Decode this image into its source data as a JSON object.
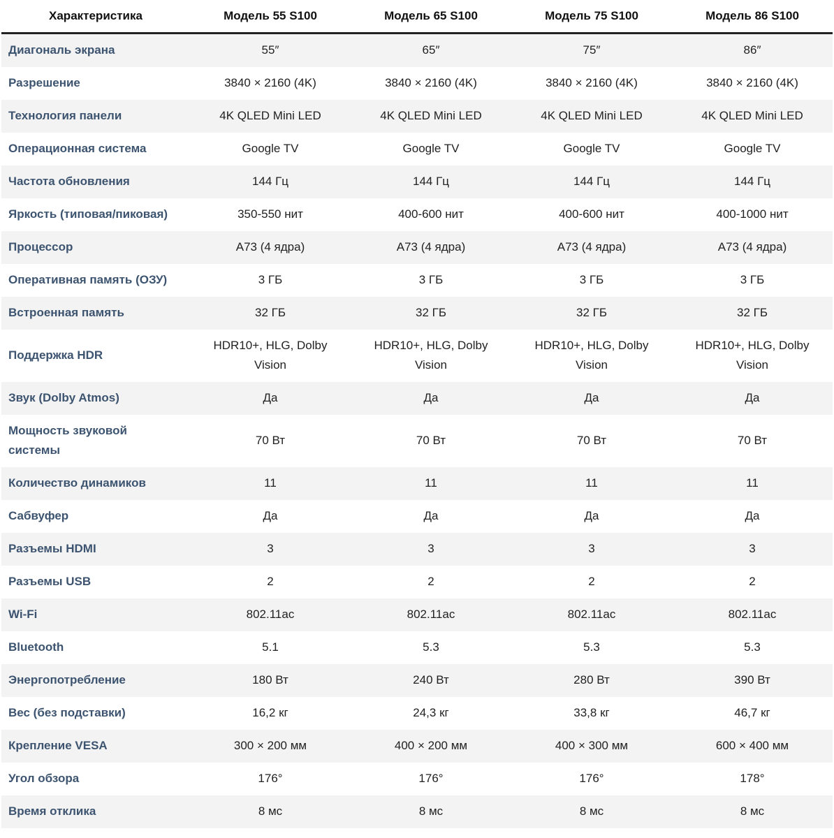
{
  "table": {
    "header": [
      "Характеристика",
      "Модель 55 S100",
      "Модель 65 S100",
      "Модель 75 S100",
      "Модель 86 S100"
    ],
    "rows": [
      [
        "Диагональ экрана",
        "55″",
        "65″",
        "75″",
        "86″"
      ],
      [
        "Разрешение",
        "3840 × 2160 (4K)",
        "3840 × 2160 (4K)",
        "3840 × 2160 (4K)",
        "3840 × 2160 (4K)"
      ],
      [
        "Технология панели",
        "4K QLED Mini LED",
        "4K QLED Mini LED",
        "4K QLED Mini LED",
        "4K QLED Mini LED"
      ],
      [
        "Операционная система",
        "Google TV",
        "Google TV",
        "Google TV",
        "Google TV"
      ],
      [
        "Частота обновления",
        "144 Гц",
        "144 Гц",
        "144 Гц",
        "144 Гц"
      ],
      [
        "Яркость (типовая/пиковая)",
        "350-550 нит",
        "400-600 нит",
        "400-600 нит",
        "400-1000 нит"
      ],
      [
        "Процессор",
        "A73 (4 ядра)",
        "A73 (4 ядра)",
        "A73 (4 ядра)",
        "A73 (4 ядра)"
      ],
      [
        "Оперативная память (ОЗУ)",
        "3 ГБ",
        "3 ГБ",
        "3 ГБ",
        "3 ГБ"
      ],
      [
        "Встроенная память",
        "32 ГБ",
        "32 ГБ",
        "32 ГБ",
        "32 ГБ"
      ],
      [
        "Поддержка HDR",
        "HDR10+, HLG, Dolby Vision",
        "HDR10+, HLG, Dolby Vision",
        "HDR10+, HLG, Dolby Vision",
        "HDR10+, HLG, Dolby Vision"
      ],
      [
        "Звук (Dolby Atmos)",
        "Да",
        "Да",
        "Да",
        "Да"
      ],
      [
        "Мощность звуковой системы",
        "70 Вт",
        "70 Вт",
        "70 Вт",
        "70 Вт"
      ],
      [
        "Количество динамиков",
        "11",
        "11",
        "11",
        "11"
      ],
      [
        "Сабвуфер",
        "Да",
        "Да",
        "Да",
        "Да"
      ],
      [
        "Разъемы HDMI",
        "3",
        "3",
        "3",
        "3"
      ],
      [
        "Разъемы USB",
        "2",
        "2",
        "2",
        "2"
      ],
      [
        "Wi-Fi",
        "802.11ac",
        "802.11ac",
        "802.11ac",
        "802.11ac"
      ],
      [
        "Bluetooth",
        "5.1",
        "5.3",
        "5.3",
        "5.3"
      ],
      [
        "Энергопотребление",
        "180 Вт",
        "240 Вт",
        "280 Вт",
        "390 Вт"
      ],
      [
        "Вес (без подставки)",
        "16,2 кг",
        "24,3 кг",
        "33,8 кг",
        "46,7 кг"
      ],
      [
        "Крепление VESA",
        "300 × 200 мм",
        "400 × 200 мм",
        "400 × 300 мм",
        "600 × 400 мм"
      ],
      [
        "Угол обзора",
        "176°",
        "176°",
        "176°",
        "178°"
      ],
      [
        "Время отклика",
        "8 мс",
        "8 мс",
        "8 мс",
        "8 мс"
      ]
    ]
  }
}
